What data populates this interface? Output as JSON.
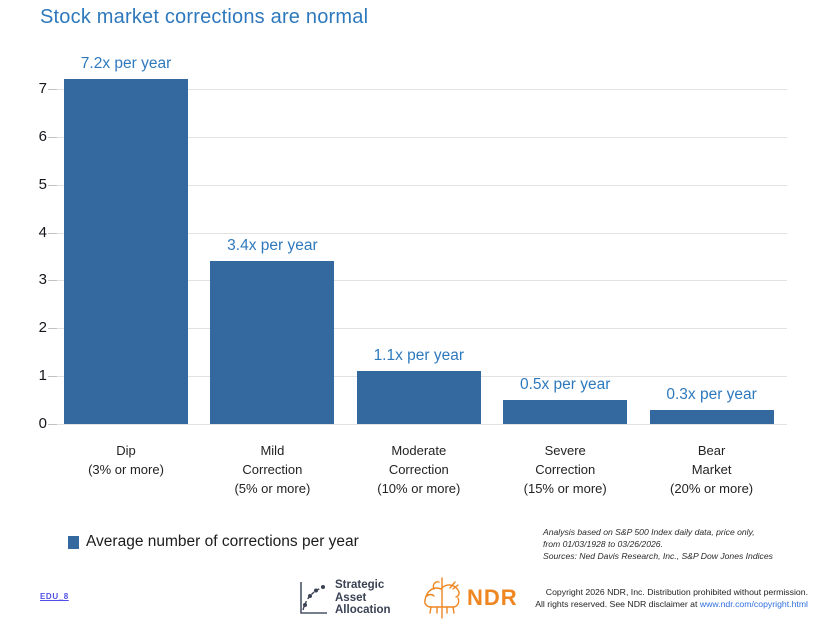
{
  "title": "Stock market corrections are normal",
  "chart_data": {
    "type": "bar",
    "title": "Stock market corrections are normal",
    "categories": [
      [
        "Dip",
        "(3% or more)"
      ],
      [
        "Mild",
        "Correction",
        "(5% or more)"
      ],
      [
        "Moderate",
        "Correction",
        "(10% or more)"
      ],
      [
        "Severe",
        "Correction",
        "(15% or more)"
      ],
      [
        "Bear",
        "Market",
        "(20% or more)"
      ]
    ],
    "values": [
      7.2,
      3.4,
      1.1,
      0.5,
      0.3
    ],
    "bar_labels": [
      "7.2x per year",
      "3.4x per year",
      "1.1x per year",
      "0.5x per year",
      "0.3x per year"
    ],
    "yticks": [
      0,
      1,
      2,
      3,
      4,
      5,
      6,
      7
    ],
    "ylim": [
      0,
      7.5
    ],
    "grid": true,
    "legend_position": "bottom-left",
    "legend": [
      "Average number of corrections per year"
    ],
    "bar_color": "#33699e",
    "value_label_color": "#2e79bd"
  },
  "legend": {
    "label": "Average number of corrections per year"
  },
  "notes": {
    "lines": [
      "Analysis based on S&P 500 Index daily data, price only,",
      "from 01/03/1928 to 03/26/2026.",
      "Sources: Ned Davis Research, Inc., S&P Dow Jones Indices"
    ]
  },
  "footer": {
    "edu_link": "EDU_8",
    "saa_logo": {
      "lines": [
        "Strategic",
        "Asset",
        "Allocation"
      ]
    },
    "ndr_logo": {
      "text": "NDR",
      "color": "#ee8722"
    },
    "copyright": {
      "line1": "Copyright 2026 NDR, Inc. Distribution prohibited without permission.",
      "line2_prefix": "All rights reserved. See NDR disclaimer at ",
      "link": "www.ndr.com/copyright.html"
    }
  },
  "colors": {
    "title_blue": "#2e79bd",
    "bar_blue": "#33699e",
    "orange": "#ee8722",
    "gridline": "#e2e2e2",
    "edu_link": "#5050e6",
    "copyright_link": "#2e6fe0"
  }
}
